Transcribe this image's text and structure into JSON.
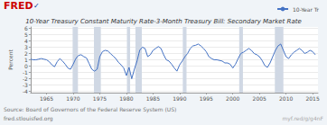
{
  "chart_data": {
    "type": "line",
    "title": "10-Year Treasury Constant Maturity Rate-3-Month Treasury Bill: Secondary Market Rate",
    "ylabel": "Percent",
    "x": [
      1962,
      1962.5,
      1963,
      1963.5,
      1964,
      1964.5,
      1965,
      1965.5,
      1966,
      1966.5,
      1967,
      1967.5,
      1968,
      1968.5,
      1969,
      1969.5,
      1970,
      1970.5,
      1971,
      1971.5,
      1972,
      1972.5,
      1973,
      1973.5,
      1974,
      1974.5,
      1975,
      1975.5,
      1976,
      1976.5,
      1977,
      1977.5,
      1978,
      1978.5,
      1979,
      1979.5,
      1980,
      1980.5,
      1981,
      1981.5,
      1982,
      1982.5,
      1983,
      1983.5,
      1984,
      1984.5,
      1985,
      1985.5,
      1986,
      1986.5,
      1987,
      1987.5,
      1988,
      1988.5,
      1989,
      1989.5,
      1990,
      1990.5,
      1991,
      1991.5,
      1992,
      1992.5,
      1993,
      1993.5,
      1994,
      1994.5,
      1995,
      1995.5,
      1996,
      1996.5,
      1997,
      1997.5,
      1998,
      1998.5,
      1999,
      1999.5,
      2000,
      2000.5,
      2001,
      2001.5,
      2002,
      2002.5,
      2003,
      2003.5,
      2004,
      2004.5,
      2005,
      2005.5,
      2006,
      2006.5,
      2007,
      2007.5,
      2008,
      2008.5,
      2009,
      2009.5,
      2010,
      2010.5,
      2011,
      2011.5,
      2012,
      2012.5,
      2013,
      2013.5,
      2014,
      2014.5,
      2015,
      2015.5
    ],
    "series": [
      {
        "name": "10-Year Tr",
        "color": "#4472C4",
        "values": [
          1.1,
          1.0,
          1.0,
          1.1,
          1.2,
          1.1,
          1.0,
          0.7,
          0.2,
          -0.1,
          0.7,
          1.2,
          0.8,
          0.3,
          -0.3,
          -0.5,
          0.3,
          1.2,
          1.7,
          1.8,
          1.5,
          1.3,
          0.4,
          -0.5,
          -0.8,
          -0.5,
          1.5,
          2.3,
          2.5,
          2.4,
          2.0,
          1.6,
          1.2,
          0.6,
          0.2,
          -0.3,
          -1.5,
          -0.2,
          -2.0,
          -0.5,
          0.8,
          2.5,
          3.0,
          2.8,
          1.5,
          1.8,
          2.5,
          2.8,
          3.1,
          2.8,
          1.8,
          1.0,
          0.8,
          0.3,
          -0.3,
          -0.8,
          0.2,
          0.8,
          1.5,
          2.0,
          2.8,
          3.2,
          3.3,
          3.5,
          3.2,
          2.8,
          2.3,
          1.5,
          1.2,
          1.0,
          1.0,
          0.9,
          0.8,
          0.5,
          0.5,
          0.3,
          -0.3,
          0.3,
          1.2,
          2.0,
          2.2,
          2.5,
          2.8,
          2.5,
          2.0,
          1.8,
          1.5,
          0.9,
          0.1,
          -0.2,
          0.5,
          1.5,
          2.5,
          3.2,
          3.5,
          2.5,
          1.5,
          1.2,
          1.8,
          2.2,
          2.5,
          2.8,
          2.5,
          2.0,
          2.2,
          2.5,
          2.3,
          1.8
        ]
      }
    ],
    "recessions": [
      [
        1969.9,
        1970.9
      ],
      [
        1973.9,
        1975.2
      ],
      [
        1980.1,
        1980.7
      ],
      [
        1981.7,
        1982.9
      ],
      [
        1990.6,
        1991.3
      ],
      [
        2001.2,
        2001.9
      ],
      [
        2007.9,
        2009.5
      ]
    ],
    "xlim": [
      1962,
      2016
    ],
    "xticks": [
      1965,
      1970,
      1975,
      1980,
      1985,
      1990,
      1995,
      2000,
      2005,
      2010,
      2015
    ],
    "ylim": [
      -4.2,
      6.2
    ],
    "yticks": [
      -4,
      -3,
      -2,
      -1,
      0,
      1,
      2,
      3,
      4,
      5,
      6
    ],
    "grid": true,
    "legend": "top right",
    "annotations": [
      {
        "text": "FRED",
        "color": "#cc0000"
      },
      {
        "text": "✓",
        "color": "#003399"
      },
      {
        "text": "Source: Board of Governors of the Federal Reserve System (US)"
      },
      {
        "text": "fred.stlouisfed.org"
      },
      {
        "text": "myf.red/g/g4nF"
      }
    ]
  }
}
